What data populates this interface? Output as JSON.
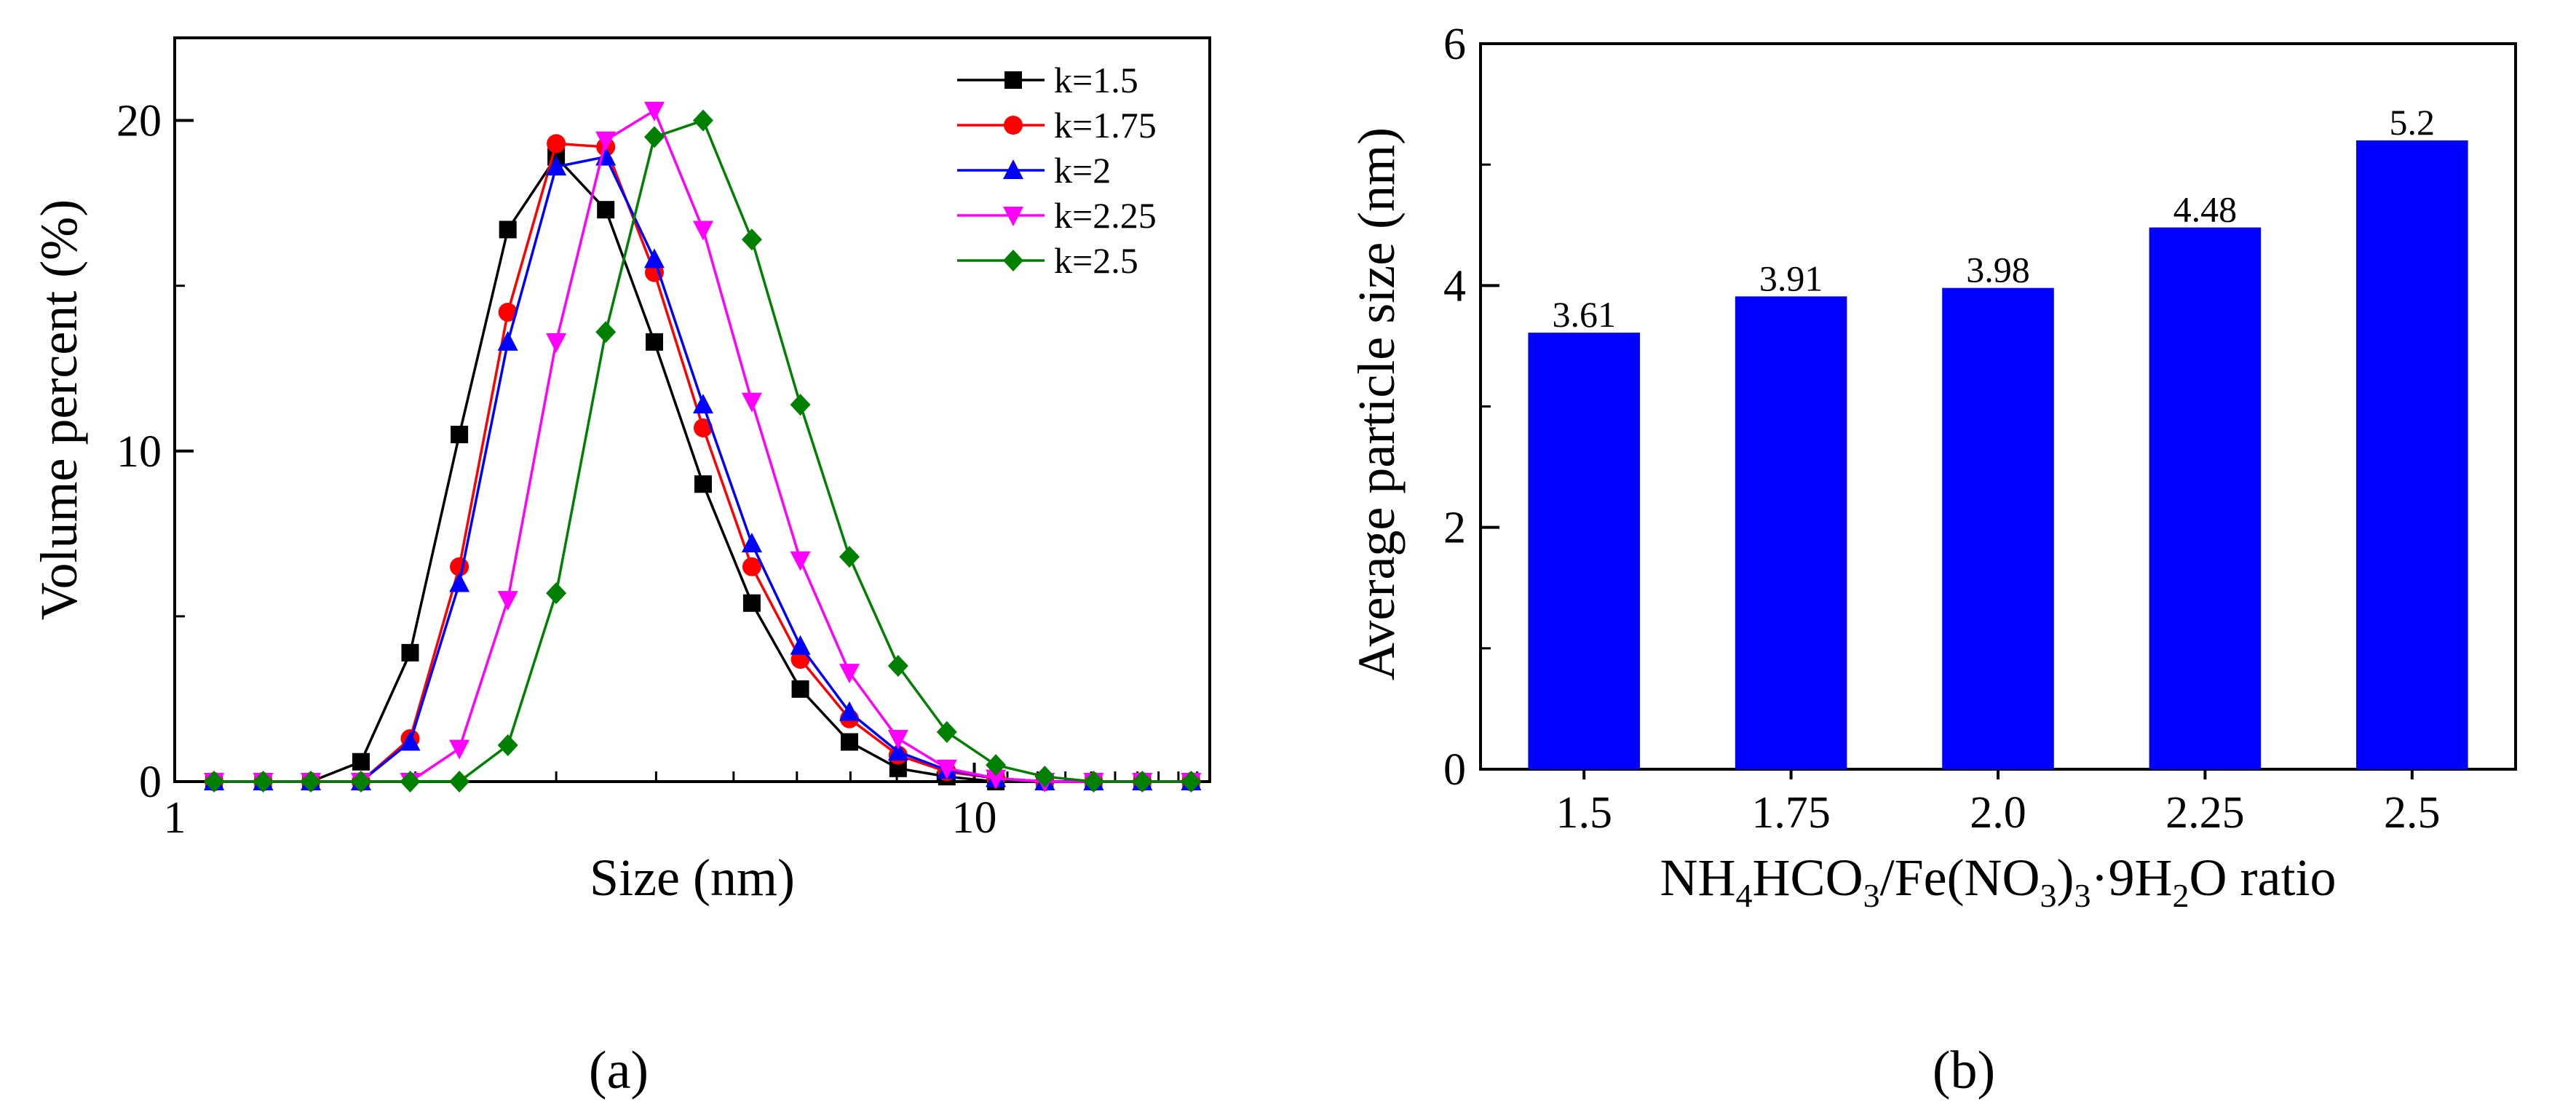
{
  "chart_data": [
    {
      "panel": "a",
      "type": "line",
      "xscale": "log",
      "xlabel": "Size (nm)",
      "ylabel": "Volume percent (%)",
      "xlim": [
        1,
        19.7
      ],
      "ylim": [
        0,
        22.5
      ],
      "xticks": [
        1,
        10
      ],
      "yticks": [
        0,
        10,
        20
      ],
      "legend_position": "top-right",
      "x": [
        1.12,
        1.29,
        1.48,
        1.71,
        1.97,
        2.27,
        2.61,
        3.0,
        3.46,
        3.98,
        4.58,
        5.27,
        6.06,
        6.98,
        8.03,
        9.24,
        10.64,
        12.25,
        14.1,
        16.22,
        18.67
      ],
      "series": [
        {
          "name": "k=1.5",
          "color": "#000000",
          "marker": "square",
          "values": [
            0,
            0,
            0,
            0.6,
            3.9,
            10.5,
            16.7,
            18.9,
            17.3,
            13.3,
            9.0,
            5.4,
            2.8,
            1.2,
            0.4,
            0.15,
            0,
            0,
            0,
            0,
            0
          ]
        },
        {
          "name": "k=1.75",
          "color": "#ff0000",
          "marker": "circle",
          "values": [
            0,
            0,
            0,
            0,
            1.3,
            6.5,
            14.2,
            19.3,
            19.2,
            15.4,
            10.7,
            6.5,
            3.7,
            1.9,
            0.8,
            0.3,
            0.1,
            0,
            0,
            0,
            0
          ]
        },
        {
          "name": "k=2",
          "color": "#0000ff",
          "marker": "triangle-up",
          "values": [
            0,
            0,
            0,
            0,
            1.2,
            6.0,
            13.3,
            18.6,
            18.9,
            15.8,
            11.4,
            7.2,
            4.1,
            2.1,
            0.9,
            0.35,
            0.1,
            0,
            0,
            0,
            0
          ]
        },
        {
          "name": "k=2.25",
          "color": "#ff00ff",
          "marker": "triangle-down",
          "values": [
            0,
            0,
            0,
            0,
            0,
            1.0,
            5.5,
            13.3,
            19.4,
            20.3,
            16.7,
            11.5,
            6.7,
            3.3,
            1.3,
            0.4,
            0.1,
            0,
            0,
            0,
            0
          ]
        },
        {
          "name": "k=2.5",
          "color": "#008000",
          "marker": "diamond",
          "values": [
            0,
            0,
            0,
            0,
            0,
            0,
            1.1,
            5.7,
            13.6,
            19.5,
            20.0,
            16.4,
            11.4,
            6.8,
            3.5,
            1.5,
            0.5,
            0.15,
            0,
            0,
            0
          ]
        }
      ],
      "panel_label": "(a)"
    },
    {
      "panel": "b",
      "type": "bar",
      "categories": [
        "1.5",
        "1.75",
        "2.0",
        "2.25",
        "2.5"
      ],
      "values": [
        3.61,
        3.91,
        3.98,
        4.48,
        5.2
      ],
      "data_labels": [
        "3.61",
        "3.91",
        "3.98",
        "4.48",
        "5.2"
      ],
      "bar_color": "#0000ff",
      "xlabel": "NH4HCO3/Fe(NO3)3·9H2O ratio",
      "xlabel_parts": {
        "nh": "NH",
        "sub4": "4",
        "hco": "HCO",
        "sub3a": "3",
        "fe": "/Fe(NO",
        "sub3b": "3",
        "paren": ")",
        "sub3c": "3",
        "dot9h": "·9H",
        "sub2": "2",
        "o_ratio": "O ratio"
      },
      "ylabel": "Average particle size (nm)",
      "ylim": [
        0,
        6
      ],
      "yticks": [
        0,
        2,
        4,
        6
      ],
      "panel_label": "(b)"
    }
  ]
}
